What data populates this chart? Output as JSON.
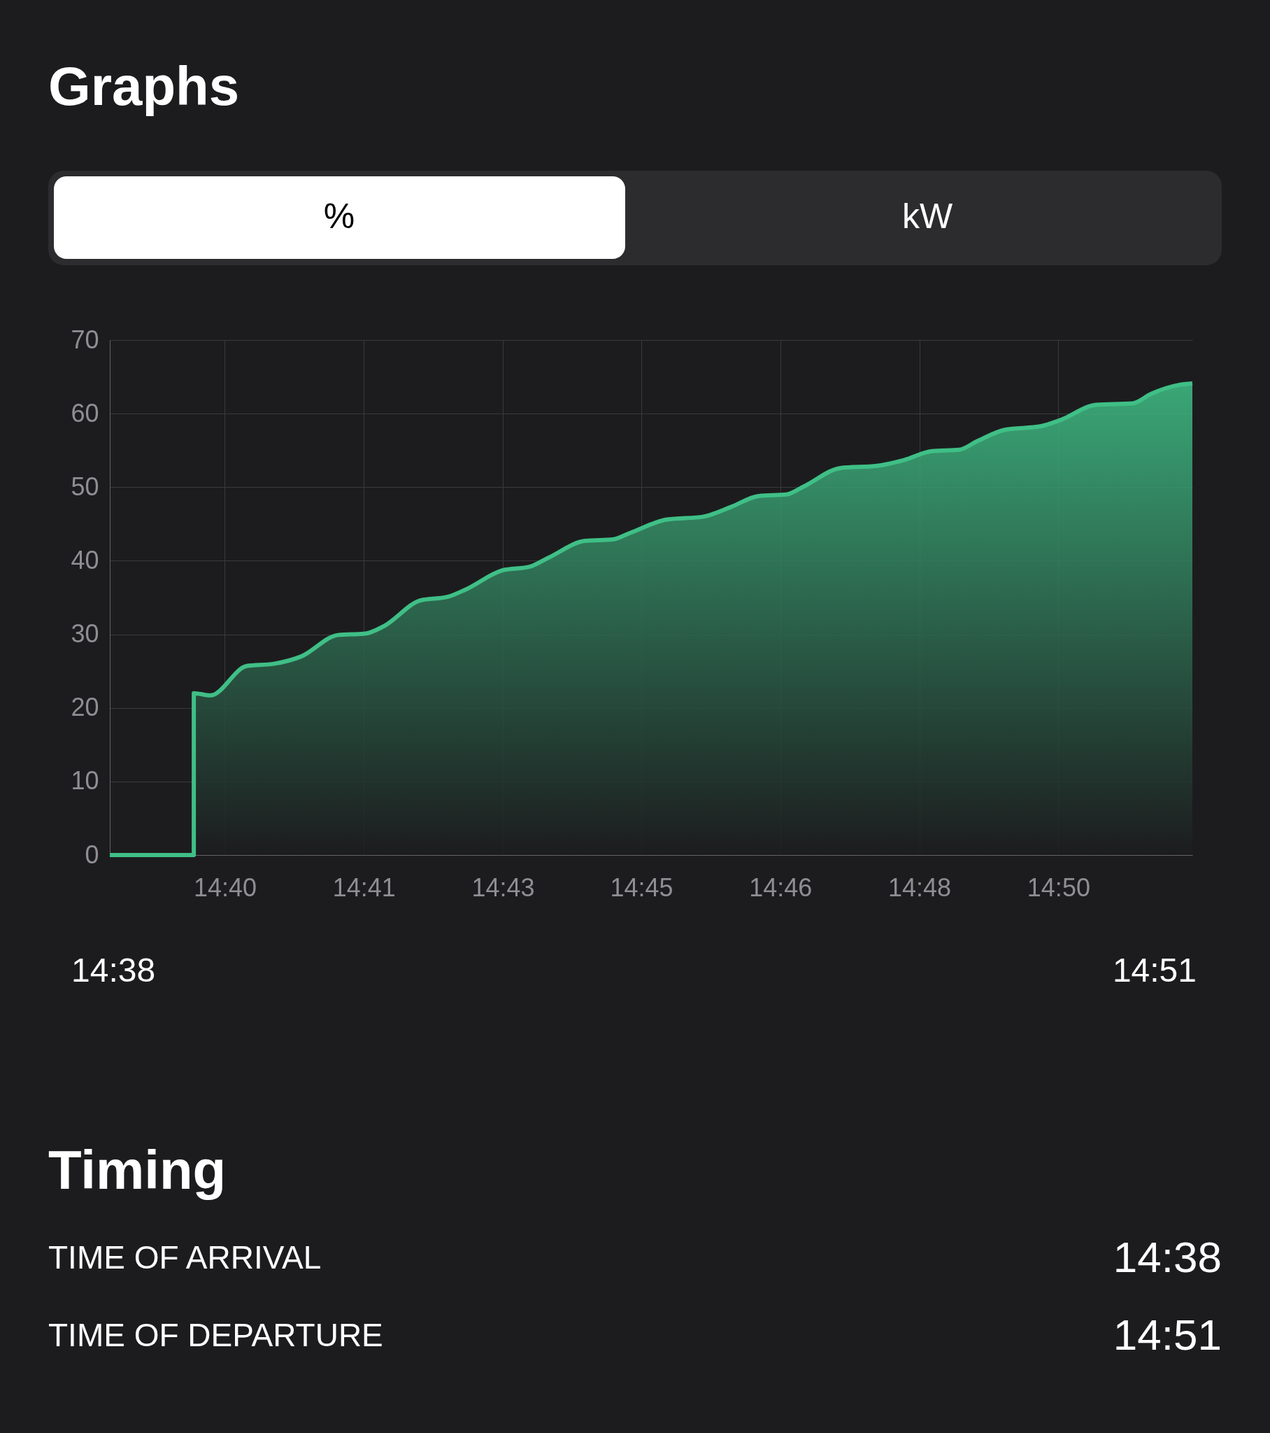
{
  "chart_data": {
    "type": "area",
    "title": "Graphs",
    "x": [
      14.6395,
      14.6563,
      14.6563,
      14.6596,
      14.6669,
      14.6723,
      14.6778,
      14.6851,
      14.6906,
      14.6943,
      14.7016,
      14.7071,
      14.7107,
      14.718,
      14.7235,
      14.7272,
      14.7345,
      14.74,
      14.7436,
      14.7509,
      14.7582,
      14.7637,
      14.7692,
      14.7747,
      14.7783,
      14.7856,
      14.7929,
      14.7984,
      14.8039,
      14.8094,
      14.8131,
      14.8185,
      14.8258,
      14.8295,
      14.8368,
      14.8441,
      14.8478,
      14.8533,
      14.856
    ],
    "series": [
      {
        "color": "#3fbf86",
        "values": [
          0,
          0,
          22,
          21.7,
          25.7,
          26,
          27,
          29.9,
          30.1,
          31.1,
          34.6,
          35.1,
          36.1,
          38.7,
          39.2,
          40.4,
          42.7,
          42.9,
          43.8,
          45.6,
          46,
          47.3,
          48.8,
          49,
          50.1,
          52.6,
          52.9,
          53.7,
          54.9,
          55.1,
          56.3,
          57.8,
          58.3,
          59.1,
          61.2,
          61.4,
          62.7,
          63.9,
          64.1
        ]
      }
    ],
    "xlim": [
      14.6395,
      14.856
    ],
    "xticks": [
      {
        "value": 14.6625,
        "label": "14:40"
      },
      {
        "value": 14.6903,
        "label": "14:41"
      },
      {
        "value": 14.7181,
        "label": "14:43"
      },
      {
        "value": 14.7458,
        "label": "14:45"
      },
      {
        "value": 14.7736,
        "label": "14:46"
      },
      {
        "value": 14.8014,
        "label": "14:48"
      },
      {
        "value": 14.8292,
        "label": "14:50"
      }
    ],
    "ylim": [
      0,
      70
    ],
    "yticks": [
      0,
      10,
      20,
      30,
      40,
      50,
      60,
      70
    ],
    "grid": true,
    "annotations": [
      "%",
      "kW",
      "14:38",
      "14:51",
      "Timing",
      "TIME OF ARRIVAL",
      "14:38",
      "TIME OF DEPARTURE",
      "14:51"
    ]
  }
}
